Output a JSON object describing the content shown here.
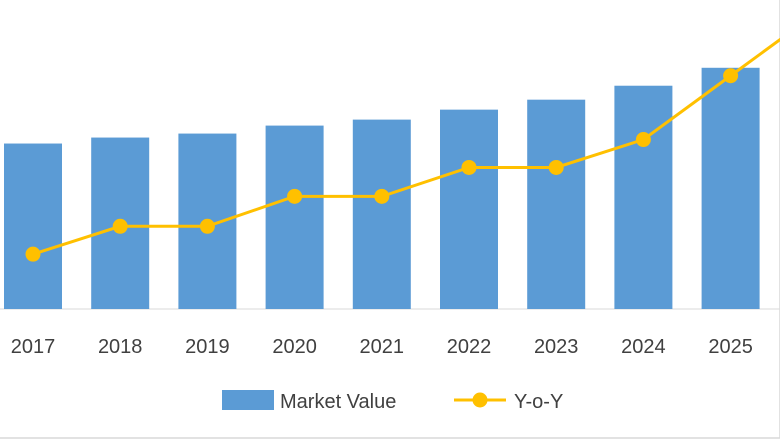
{
  "chart_data": {
    "type": "bar",
    "title": "",
    "xlabel": "",
    "ylabel": "",
    "categories": [
      "2017",
      "2018",
      "2019",
      "2020",
      "2021",
      "2022",
      "2023",
      "2024",
      "2025"
    ],
    "series": [
      {
        "name": "Market Value",
        "kind": "bar",
        "color": "#5b9bd5",
        "values": [
          166,
          172,
          176,
          184,
          190,
          200,
          210,
          224,
          242
        ]
      },
      {
        "name": "Y-o-Y",
        "kind": "line",
        "color": "#ffc000",
        "marker": "circle",
        "values": [
          55,
          83,
          83,
          113,
          113,
          142,
          142,
          170,
          234
        ]
      }
    ],
    "ylim": [
      0,
      310
    ],
    "grid": false,
    "legend_position": "bottom"
  }
}
